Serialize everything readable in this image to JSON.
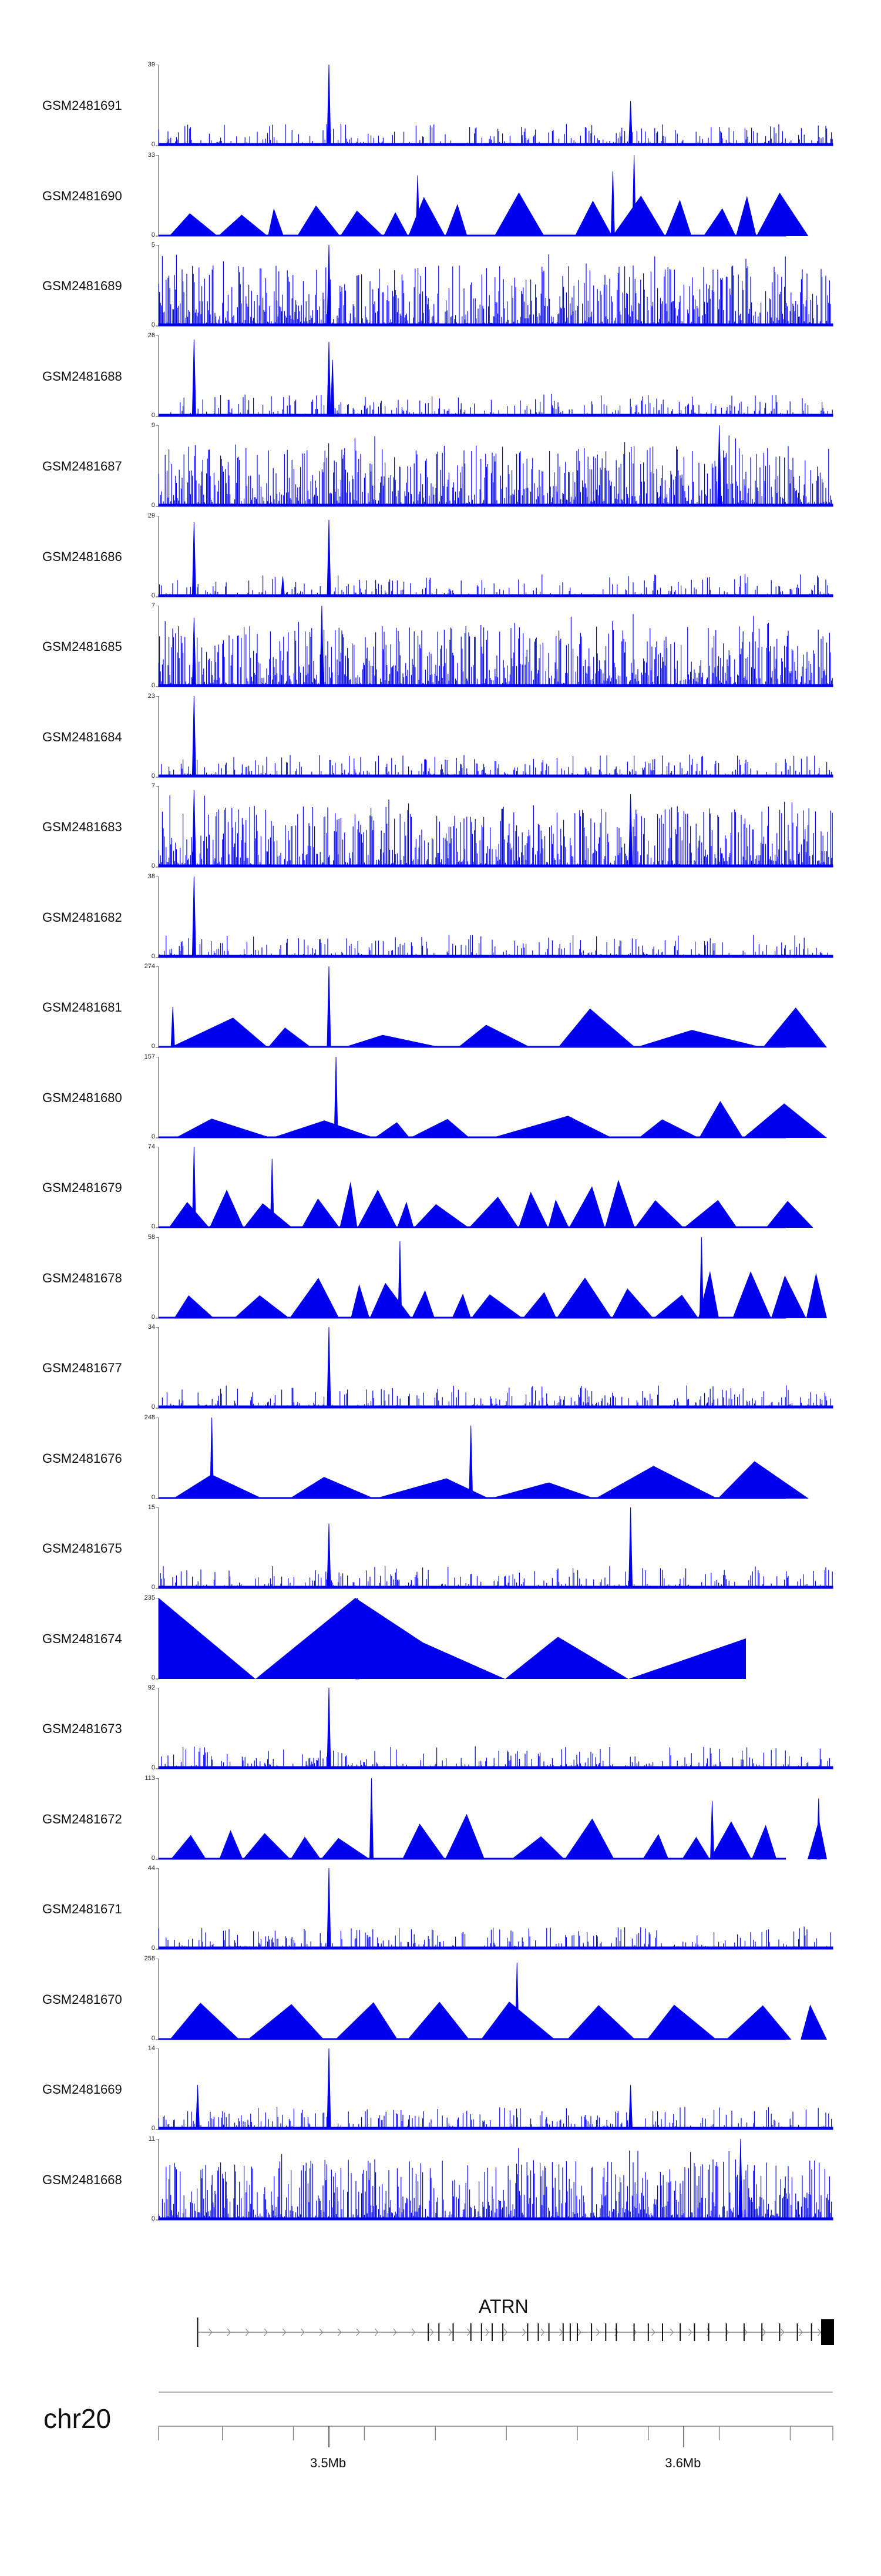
{
  "chart_data": {
    "type": "genome-browser-coverage",
    "chromosome": "chr20",
    "region": {
      "start_mb": 3.452,
      "end_mb": 3.642
    },
    "axis_ticks": [
      {
        "pos": 3.45
      },
      {
        "pos": 3.47
      },
      {
        "pos": 3.49
      },
      {
        "pos": 3.5,
        "label": "3.5Mb"
      },
      {
        "pos": 3.51
      },
      {
        "pos": 3.53
      },
      {
        "pos": 3.55
      },
      {
        "pos": 3.57
      },
      {
        "pos": 3.59
      },
      {
        "pos": 3.6,
        "label": "3.6Mb"
      },
      {
        "pos": 3.61
      },
      {
        "pos": 3.63
      },
      {
        "pos": 3.65
      }
    ],
    "gene": {
      "name": "ATRN",
      "strand": "+",
      "start_mb": 3.463,
      "end_mb": 3.642,
      "exons_mb": [
        3.463,
        3.528,
        3.531,
        3.535,
        3.54,
        3.543,
        3.546,
        3.549,
        3.556,
        3.559,
        3.562,
        3.566,
        3.568,
        3.57,
        3.574,
        3.578,
        3.581,
        3.586,
        3.59,
        3.594,
        3.599,
        3.603,
        3.607,
        3.612,
        3.617,
        3.622,
        3.627,
        3.632,
        3.636
      ]
    },
    "tracks": [
      {
        "name": "GSM2481691",
        "max": 39,
        "min": 0,
        "style": "dense",
        "seed": 11,
        "peaks": [
          [
            3.5,
            1.0
          ],
          [
            3.585,
            0.55
          ]
        ]
      },
      {
        "name": "GSM2481690",
        "max": 33,
        "min": 0,
        "style": "sparse-tri",
        "seed": 12,
        "peaks": [
          [
            3.586,
            1.0
          ],
          [
            3.58,
            0.8
          ],
          [
            3.525,
            0.75
          ]
        ]
      },
      {
        "name": "GSM2481689",
        "max": 5,
        "min": 0,
        "style": "dense-high",
        "seed": 13,
        "peaks": [
          [
            3.5,
            1.0
          ]
        ]
      },
      {
        "name": "GSM2481688",
        "max": 26,
        "min": 0,
        "style": "dense",
        "seed": 14,
        "peaks": [
          [
            3.462,
            0.95
          ],
          [
            3.5,
            0.92
          ],
          [
            3.501,
            0.7
          ]
        ]
      },
      {
        "name": "GSM2481687",
        "max": 9,
        "min": 0,
        "style": "dense-high",
        "seed": 15,
        "peaks": [
          [
            3.61,
            1.0
          ]
        ]
      },
      {
        "name": "GSM2481686",
        "max": 29,
        "min": 0,
        "style": "dense",
        "seed": 16,
        "peaks": [
          [
            3.462,
            0.92
          ],
          [
            3.5,
            0.95
          ],
          [
            3.487,
            0.25
          ]
        ]
      },
      {
        "name": "GSM2481685",
        "max": 7,
        "min": 0,
        "style": "dense-high",
        "seed": 17,
        "peaks": [
          [
            3.498,
            1.0
          ],
          [
            3.462,
            0.85
          ]
        ]
      },
      {
        "name": "GSM2481684",
        "max": 23,
        "min": 0,
        "style": "dense",
        "seed": 18,
        "peaks": [
          [
            3.462,
            1.0
          ]
        ]
      },
      {
        "name": "GSM2481683",
        "max": 7,
        "min": 0,
        "style": "dense-high",
        "seed": 19,
        "peaks": [
          [
            3.462,
            0.95
          ],
          [
            3.585,
            0.9
          ]
        ]
      },
      {
        "name": "GSM2481682",
        "max": 38,
        "min": 0,
        "style": "dense",
        "seed": 20,
        "peaks": [
          [
            3.462,
            1.0
          ]
        ]
      },
      {
        "name": "GSM2481681",
        "max": 274,
        "min": 0,
        "style": "triangles",
        "seed": 21,
        "peaks": [
          [
            3.5,
            1.0
          ],
          [
            3.456,
            0.5
          ]
        ]
      },
      {
        "name": "GSM2481680",
        "max": 157,
        "min": 0,
        "style": "triangles",
        "seed": 22,
        "peaks": [
          [
            3.502,
            1.0
          ]
        ]
      },
      {
        "name": "GSM2481679",
        "max": 74,
        "min": 0,
        "style": "triangles",
        "seed": 23,
        "peaks": [
          [
            3.462,
            1.0
          ],
          [
            3.484,
            0.85
          ]
        ]
      },
      {
        "name": "GSM2481678",
        "max": 58,
        "min": 0,
        "style": "triangles",
        "seed": 24,
        "peaks": [
          [
            3.605,
            1.0
          ],
          [
            3.52,
            0.95
          ]
        ]
      },
      {
        "name": "GSM2481677",
        "max": 34,
        "min": 0,
        "style": "dense",
        "seed": 25,
        "peaks": [
          [
            3.5,
            1.0
          ]
        ]
      },
      {
        "name": "GSM2481676",
        "max": 248,
        "min": 0,
        "style": "triangles",
        "seed": 26,
        "peaks": [
          [
            3.467,
            1.0
          ],
          [
            3.54,
            0.9
          ]
        ]
      },
      {
        "name": "GSM2481675",
        "max": 15,
        "min": 0,
        "style": "dense",
        "seed": 27,
        "peaks": [
          [
            3.585,
            1.0
          ],
          [
            3.5,
            0.8
          ]
        ]
      },
      {
        "name": "GSM2481674",
        "max": 235,
        "min": 0,
        "style": "big-tri",
        "seed": 28,
        "peaks": [
          [
            3.508,
            1.0
          ]
        ]
      },
      {
        "name": "GSM2481673",
        "max": 92,
        "min": 0,
        "style": "dense",
        "seed": 29,
        "peaks": [
          [
            3.5,
            1.0
          ]
        ]
      },
      {
        "name": "GSM2481672",
        "max": 113,
        "min": 0,
        "style": "triangles",
        "seed": 30,
        "peaks": [
          [
            3.512,
            1.0
          ],
          [
            3.638,
            0.75
          ],
          [
            3.608,
            0.72
          ]
        ]
      },
      {
        "name": "GSM2481671",
        "max": 44,
        "min": 0,
        "style": "dense",
        "seed": 31,
        "peaks": [
          [
            3.5,
            1.0
          ]
        ]
      },
      {
        "name": "GSM2481670",
        "max": 258,
        "min": 0,
        "style": "triangles-even",
        "seed": 32,
        "peaks": [
          [
            3.553,
            0.95
          ]
        ]
      },
      {
        "name": "GSM2481669",
        "max": 14,
        "min": 0,
        "style": "dense",
        "seed": 33,
        "peaks": [
          [
            3.5,
            1.0
          ],
          [
            3.585,
            0.55
          ],
          [
            3.463,
            0.55
          ]
        ]
      },
      {
        "name": "GSM2481668",
        "max": 11,
        "min": 0,
        "style": "dense-high",
        "seed": 34,
        "peaks": [
          [
            3.616,
            1.0
          ]
        ]
      }
    ]
  },
  "colors": {
    "signal": "#0000ee",
    "text": "#111111",
    "axis": "#888888"
  }
}
